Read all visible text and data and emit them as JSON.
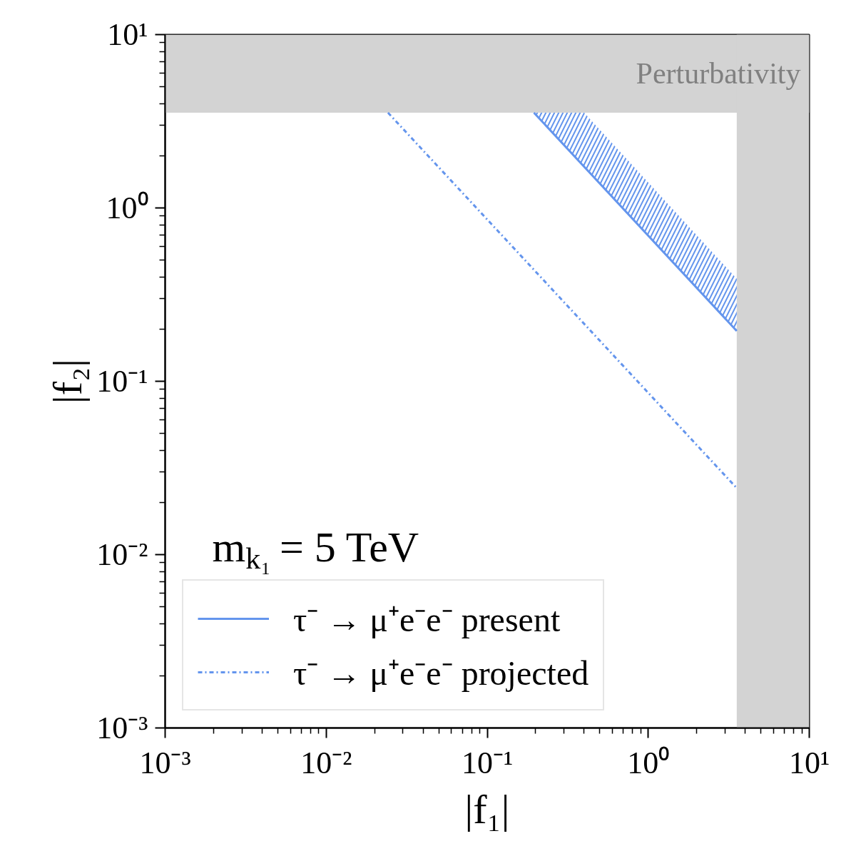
{
  "chart_data": {
    "type": "line",
    "xlabel": "|f₁|",
    "ylabel": "|f₂|",
    "log": "xy",
    "xlim": [
      0.001,
      10
    ],
    "ylim": [
      0.001,
      10
    ],
    "xticks": [
      {
        "value": 0.001,
        "label": "10⁻³"
      },
      {
        "value": 0.01,
        "label": "10⁻²"
      },
      {
        "value": 0.1,
        "label": "10⁻¹"
      },
      {
        "value": 1,
        "label": "10⁰"
      },
      {
        "value": 10,
        "label": "10¹"
      }
    ],
    "yticks": [
      {
        "value": 0.001,
        "label": "10⁻³"
      },
      {
        "value": 0.01,
        "label": "10⁻²"
      },
      {
        "value": 0.1,
        "label": "10⁻¹"
      },
      {
        "value": 1,
        "label": "10⁰"
      },
      {
        "value": 10,
        "label": "10¹"
      }
    ],
    "series": [
      {
        "name": "τ⁻ → μ⁺e⁻e⁻ present",
        "color": "#6495ed",
        "line_style": "solid",
        "x": [
          0.195,
          0.4,
          3.545
        ],
        "values": [
          3.545,
          1.73,
          0.195
        ],
        "lower": [
          3.545,
          1.73,
          0.195
        ],
        "upper": [
          3.545,
          3.545,
          0.39
        ]
      },
      {
        "name": "τ⁻ → μ⁺e⁻e⁻ projected",
        "color": "#6495ed",
        "line_style": "dashdot",
        "x": [
          0.0242,
          3.545
        ],
        "values": [
          3.545,
          0.0242
        ]
      }
    ],
    "bands": [
      {
        "axis": "y",
        "from": 3.545,
        "to": 10,
        "label": "Perturbativity",
        "color": "#d3d3d3"
      },
      {
        "axis": "x",
        "from": 3.545,
        "to": 10,
        "color": "#d3d3d3"
      }
    ],
    "annotations": [
      "m$_{k₁}$ = 5 TeV"
    ],
    "legend": "bottom left"
  }
}
